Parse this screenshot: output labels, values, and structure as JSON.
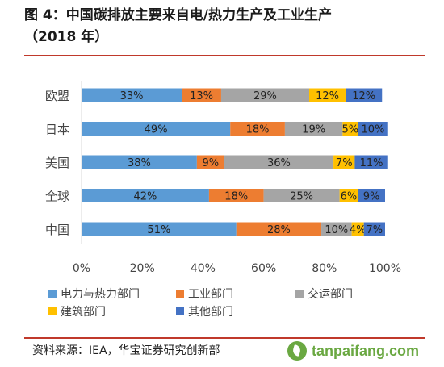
{
  "figure": {
    "title_line1": "图 4：中国碳排放主要来自电/热力生产及工业生产",
    "title_line2": "（2018 年）",
    "source": "资料来源：IEA，华宝证券研究创新部",
    "watermark": "tanpaifang.com"
  },
  "colors": {
    "rule": "#c0392b",
    "watermark": "#6aa842"
  },
  "chart_data": {
    "type": "bar",
    "orientation": "horizontal",
    "stacked": true,
    "percent_stacked": true,
    "categories": [
      "欧盟",
      "日本",
      "美国",
      "全球",
      "中国"
    ],
    "series": [
      {
        "name": "电力与热力部门",
        "color": "#5b9bd5",
        "values": [
          33,
          49,
          38,
          42,
          51
        ]
      },
      {
        "name": "工业部门",
        "color": "#ed7d31",
        "values": [
          13,
          18,
          9,
          18,
          28
        ]
      },
      {
        "name": "交运部门",
        "color": "#a5a5a5",
        "values": [
          29,
          19,
          36,
          25,
          10
        ]
      },
      {
        "name": "建筑部门",
        "color": "#ffc000",
        "values": [
          12,
          5,
          7,
          6,
          4
        ]
      },
      {
        "name": "其他部门",
        "color": "#4472c4",
        "values": [
          12,
          10,
          11,
          9,
          7
        ]
      }
    ],
    "data_labels": [
      [
        "33%",
        "13%",
        "29%",
        "12%",
        "12%"
      ],
      [
        "49%",
        "18%",
        "19%",
        "5%",
        "10%"
      ],
      [
        "38%",
        "9%",
        "36%",
        "7%",
        "11%"
      ],
      [
        "42%",
        "18%",
        "25%",
        "6%",
        "9%"
      ],
      [
        "51%",
        "28%",
        "10%",
        "4%",
        "7%"
      ]
    ],
    "x_ticks": [
      "0%",
      "20%",
      "40%",
      "60%",
      "80%",
      "100%"
    ],
    "xlim": [
      0,
      100
    ],
    "grid": false,
    "legend_position": "bottom",
    "legend_rows": [
      [
        0,
        1,
        2
      ],
      [
        3,
        4
      ]
    ]
  }
}
